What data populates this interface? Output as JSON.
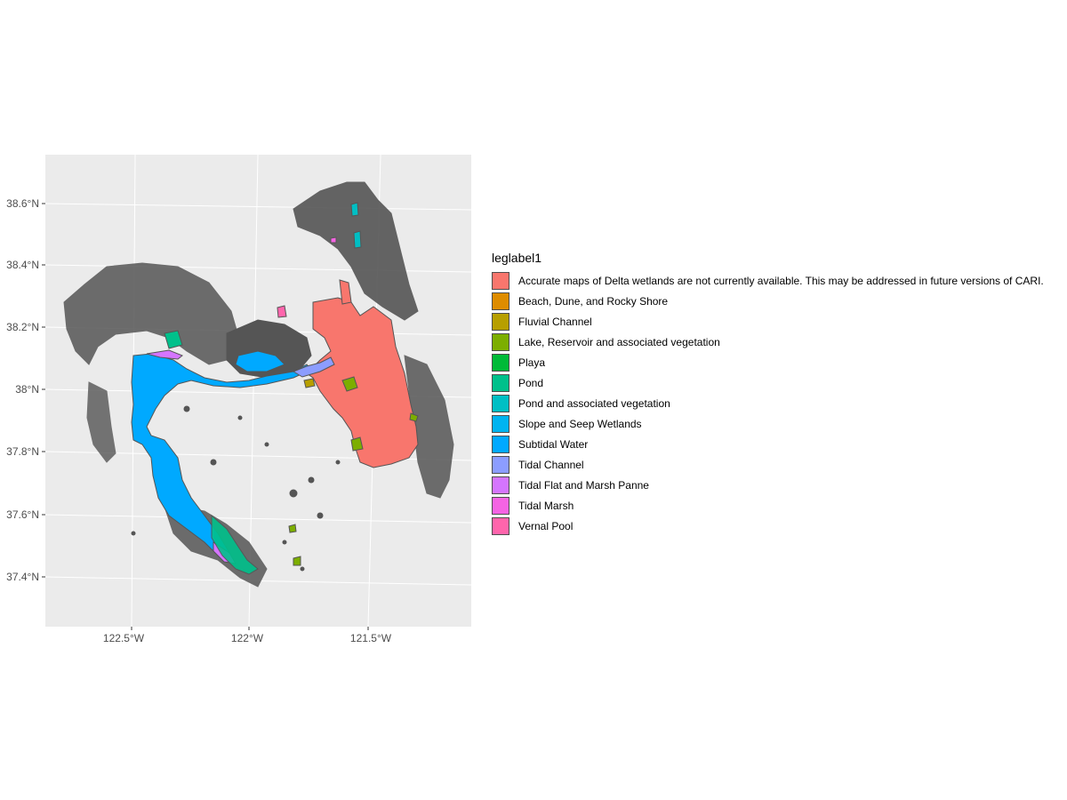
{
  "map": {
    "y_ticks": [
      "38.6°N",
      "38.4°N",
      "38.2°N",
      "38°N",
      "37.8°N",
      "37.6°N",
      "37.4°N"
    ],
    "x_ticks": [
      "122.5°W",
      "122°W",
      "121.5°W"
    ],
    "background_color": "#EBEBEB",
    "grid_color": "#FFFFFF",
    "outline_color": "#555555"
  },
  "legend": {
    "title": "leglabel1",
    "items": [
      {
        "label": "Accurate maps of Delta wetlands are not currently available. This may be addressed in future versions of CARI.",
        "color": "#F8766D"
      },
      {
        "label": "Beach, Dune, and Rocky Shore",
        "color": "#DE8C00"
      },
      {
        "label": "Fluvial Channel",
        "color": "#B79F00"
      },
      {
        "label": "Lake, Reservoir and associated vegetation",
        "color": "#7CAE00"
      },
      {
        "label": "Playa",
        "color": "#00BA38"
      },
      {
        "label": "Pond",
        "color": "#00C08B"
      },
      {
        "label": "Pond and associated vegetation",
        "color": "#00BFC4"
      },
      {
        "label": "Slope and Seep Wetlands",
        "color": "#00B4F0"
      },
      {
        "label": "Subtidal Water",
        "color": "#00A9FF"
      },
      {
        "label": "Tidal Channel",
        "color": "#8C9DFF"
      },
      {
        "label": "Tidal Flat and Marsh Panne",
        "color": "#D575FE"
      },
      {
        "label": "Tidal Marsh",
        "color": "#F564E3"
      },
      {
        "label": "Vernal Pool",
        "color": "#FF65AC"
      }
    ]
  }
}
